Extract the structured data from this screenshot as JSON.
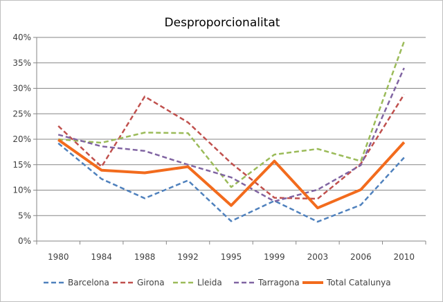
{
  "chart_data": {
    "type": "line",
    "title": "Desproporcionalitat",
    "xlabel": "",
    "ylabel": "",
    "categories": [
      "1980",
      "1984",
      "1988",
      "1992",
      "1995",
      "1999",
      "2003",
      "2006",
      "2010"
    ],
    "y_ticks": [
      "0%",
      "5%",
      "10%",
      "15%",
      "20%",
      "25%",
      "30%",
      "35%",
      "40%"
    ],
    "ylim": [
      0,
      40
    ],
    "grid": true,
    "legend_position": "bottom",
    "series": [
      {
        "name": "Barcelona",
        "color": "#4F81BD",
        "style": "dashed",
        "values": [
          19.2,
          12.2,
          8.4,
          11.9,
          3.9,
          7.9,
          3.8,
          7.1,
          16.4
        ]
      },
      {
        "name": "Girona",
        "color": "#C0504D",
        "style": "dashed",
        "values": [
          22.6,
          14.6,
          28.4,
          23.3,
          15.3,
          8.5,
          8.3,
          15.2,
          28.8
        ]
      },
      {
        "name": "Lleida",
        "color": "#9BBB59",
        "style": "dashed",
        "values": [
          20.0,
          19.3,
          21.3,
          21.2,
          10.6,
          17.0,
          18.1,
          15.7,
          39.2
        ]
      },
      {
        "name": "Tarragona",
        "color": "#8064A2",
        "style": "dashed",
        "values": [
          20.9,
          18.6,
          17.7,
          15.0,
          12.5,
          7.8,
          10.1,
          14.9,
          34.0
        ]
      },
      {
        "name": "Total Catalunya",
        "color": "#F26B1D",
        "style": "solid",
        "values": [
          19.9,
          13.9,
          13.4,
          14.6,
          7.0,
          15.7,
          6.5,
          10.1,
          19.4
        ]
      }
    ]
  }
}
